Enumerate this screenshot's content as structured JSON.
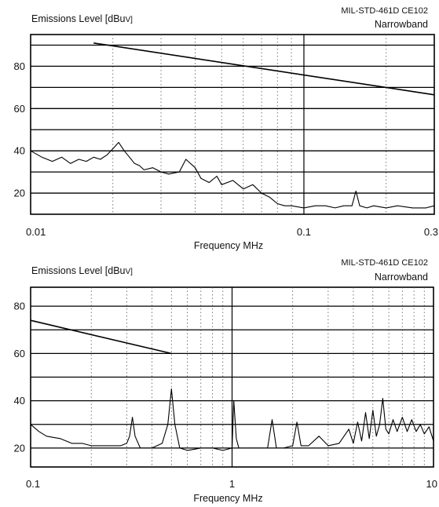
{
  "chart_data": [
    {
      "type": "line",
      "title_left": "Emissions Level [dBu",
      "title_unit": "V]",
      "title_right_1": "MIL-STD-461D CE102",
      "title_right_2": "Narrowband",
      "xlabel": "Frequency MHz",
      "ylabel": "Emissions Level [dBuV]",
      "xscale": "log",
      "xlim": [
        0.01,
        0.3
      ],
      "ylim": [
        10,
        95
      ],
      "y_ticks": [
        20,
        40,
        60,
        80
      ],
      "x_ticks": [
        0.01,
        0.1,
        0.3
      ],
      "x_tick_labels": [
        "0.01",
        "0.1",
        "0.3"
      ],
      "grid": true,
      "series": [
        {
          "role": "limit",
          "x": [
            0.017,
            0.3
          ],
          "y": [
            91,
            66.5
          ]
        },
        {
          "role": "emissions",
          "x": [
            0.01,
            0.011,
            0.012,
            0.013,
            0.014,
            0.015,
            0.016,
            0.017,
            0.018,
            0.019,
            0.02,
            0.021,
            0.022,
            0.023,
            0.024,
            0.025,
            0.026,
            0.028,
            0.03,
            0.032,
            0.035,
            0.037,
            0.04,
            0.042,
            0.045,
            0.048,
            0.05,
            0.055,
            0.06,
            0.065,
            0.07,
            0.075,
            0.08,
            0.085,
            0.09,
            0.1,
            0.11,
            0.12,
            0.13,
            0.14,
            0.15,
            0.155,
            0.16,
            0.17,
            0.18,
            0.2,
            0.22,
            0.25,
            0.28,
            0.3
          ],
          "y": [
            40,
            37,
            35,
            37,
            34,
            36,
            35,
            37,
            36,
            38,
            41,
            44,
            40,
            37,
            34,
            33,
            31,
            32,
            30,
            29,
            30,
            36,
            32,
            27,
            25,
            28,
            24,
            26,
            22,
            24,
            20,
            18,
            15,
            14,
            14,
            13,
            14,
            14,
            13,
            14,
            14,
            21,
            14,
            13,
            14,
            13,
            14,
            13,
            13,
            14
          ]
        }
      ]
    },
    {
      "type": "line",
      "title_left": "Emissions Level [dBu",
      "title_unit": "V]",
      "title_right_1": "MIL-STD-461D CE102",
      "title_right_2": "Narrowband",
      "xlabel": "Frequency MHz",
      "ylabel": "Emissions Level [dBuV]",
      "xscale": "log",
      "xlim": [
        0.1,
        10
      ],
      "ylim": [
        12,
        88
      ],
      "y_ticks": [
        20,
        40,
        60,
        80
      ],
      "x_ticks": [
        0.1,
        1,
        10
      ],
      "x_tick_labels": [
        "0.1",
        "1",
        "10"
      ],
      "grid": true,
      "series": [
        {
          "role": "limit",
          "x": [
            0.1,
            0.5
          ],
          "y": [
            74,
            60
          ]
        },
        {
          "role": "emissions",
          "x": [
            0.1,
            0.11,
            0.12,
            0.14,
            0.16,
            0.18,
            0.2,
            0.22,
            0.25,
            0.28,
            0.3,
            0.31,
            0.32,
            0.33,
            0.35,
            0.4,
            0.45,
            0.48,
            0.5,
            0.52,
            0.55,
            0.6,
            0.7,
            0.8,
            0.9,
            1.0,
            1.02,
            1.05,
            1.08,
            1.15,
            1.3,
            1.5,
            1.58,
            1.66,
            1.8,
            2.0,
            2.1,
            2.2,
            2.4,
            2.7,
            3.0,
            3.4,
            3.8,
            4.0,
            4.2,
            4.4,
            4.6,
            4.8,
            5.0,
            5.2,
            5.4,
            5.6,
            5.8,
            6.0,
            6.3,
            6.6,
            7.0,
            7.4,
            7.8,
            8.2,
            8.6,
            9.0,
            9.5,
            10.0
          ],
          "y": [
            30,
            27,
            25,
            24,
            22,
            22,
            21,
            21,
            21,
            21,
            22,
            25,
            33,
            25,
            20,
            20,
            22,
            30,
            45,
            30,
            20,
            19,
            20,
            20,
            19,
            20,
            40,
            24,
            20,
            20,
            20,
            20,
            32,
            20,
            20,
            21,
            31,
            21,
            21,
            25,
            21,
            22,
            28,
            22,
            31,
            23,
            35,
            24,
            36,
            25,
            30,
            41,
            28,
            26,
            32,
            27,
            33,
            27,
            32,
            27,
            30,
            26,
            29,
            23
          ]
        }
      ]
    }
  ]
}
